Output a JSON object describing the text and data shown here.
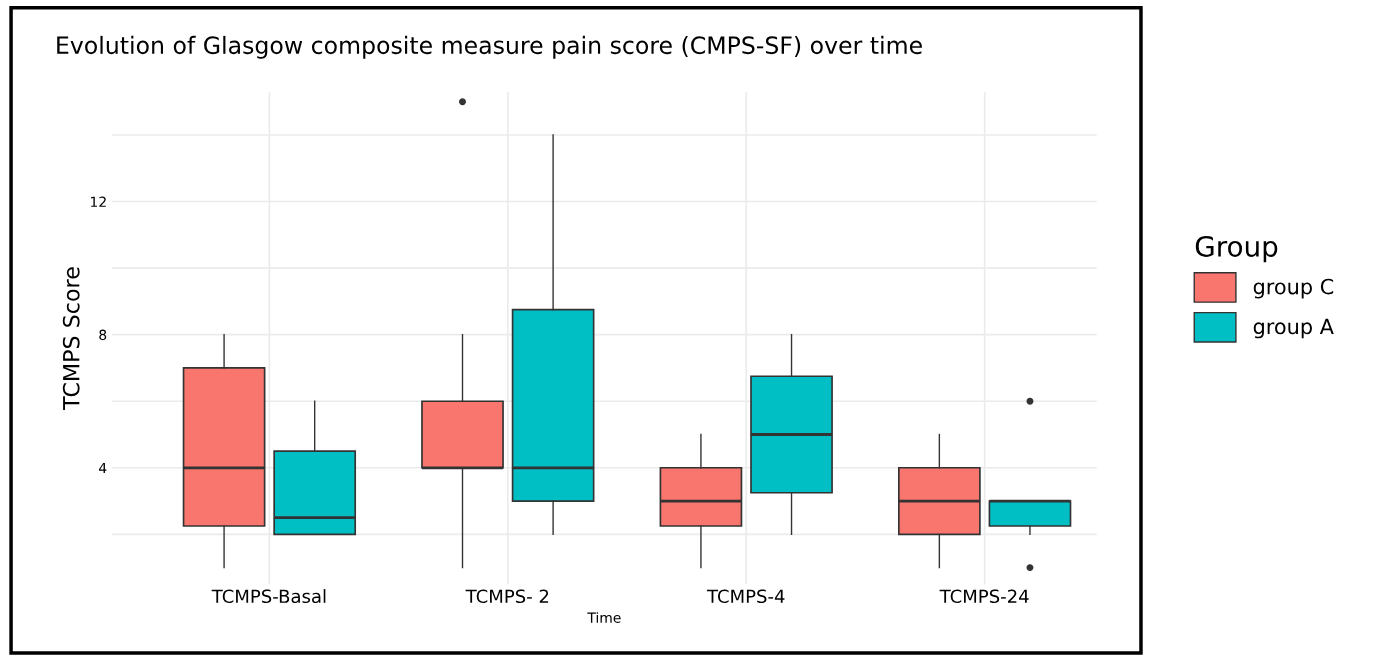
{
  "chart_data": {
    "type": "box",
    "title": "Evolution of Glasgow composite measure pain score (CMPS-SF) over time",
    "xlabel": "Time",
    "ylabel": "TCMPS Score",
    "legend_title": "Group",
    "categories": [
      "TCMPS-Basal",
      "TCMPS- 2",
      "TCMPS-4",
      "TCMPS-24"
    ],
    "ylim": [
      0.5,
      15.3
    ],
    "yticks": [
      {
        "value": 2,
        "label": null
      },
      4,
      {
        "value": 6,
        "label": null
      },
      8,
      {
        "value": 10,
        "label": null
      },
      12,
      {
        "value": 14,
        "label": null
      }
    ],
    "grid": true,
    "legend": "right",
    "series": [
      {
        "name": "group C",
        "color": "#f8766d",
        "boxes": [
          {
            "low": 1,
            "q1": 2.25,
            "median": 4,
            "q3": 7,
            "high": 8
          },
          {
            "low": 1,
            "q1": 4,
            "median": 4,
            "q3": 6,
            "high": 8,
            "outliers": [
              15
            ]
          },
          {
            "low": 1,
            "q1": 2.25,
            "median": 3,
            "q3": 4,
            "high": 5
          },
          {
            "low": 1,
            "q1": 2,
            "median": 3,
            "q3": 4,
            "high": 5
          }
        ]
      },
      {
        "name": "group A",
        "color": "#00bfc4",
        "boxes": [
          {
            "low": 2,
            "q1": 2,
            "median": 2.5,
            "q3": 4.5,
            "high": 6
          },
          {
            "low": 2,
            "q1": 3,
            "median": 4,
            "q3": 8.75,
            "high": 14
          },
          {
            "low": 2,
            "q1": 3.25,
            "median": 5,
            "q3": 6.75,
            "high": 8
          },
          {
            "low": 2,
            "q1": 2.25,
            "median": 3,
            "q3": 3,
            "high": 3,
            "outliers": [
              6,
              1
            ]
          }
        ]
      }
    ]
  }
}
